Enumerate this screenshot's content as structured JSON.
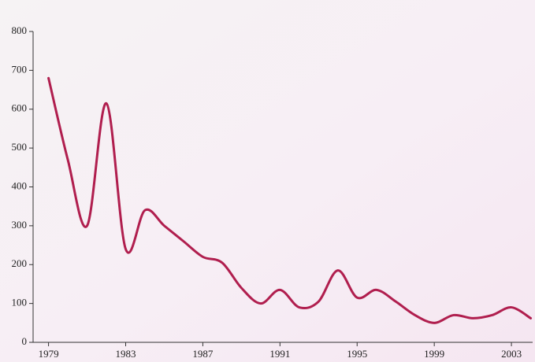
{
  "chart_data": {
    "type": "line",
    "x": [
      1979,
      1980,
      1981,
      1982,
      1983,
      1984,
      1985,
      1986,
      1987,
      1988,
      1989,
      1990,
      1991,
      1992,
      1993,
      1994,
      1995,
      1996,
      1997,
      1998,
      1999,
      2000,
      2001,
      2002,
      2003,
      2004
    ],
    "series": [
      {
        "color": "#b01e4e",
        "values": [
          680,
          470,
          300,
          615,
          240,
          340,
          300,
          260,
          220,
          205,
          140,
          100,
          135,
          90,
          105,
          185,
          115,
          135,
          105,
          70,
          50,
          70,
          62,
          70,
          90,
          62
        ]
      }
    ],
    "xlim": [
      1978.2,
      2004.1
    ],
    "xticks": [
      1979,
      1983,
      1987,
      1991,
      1995,
      1999,
      2003
    ],
    "ylim": [
      0,
      800
    ],
    "yticks": [
      0,
      100,
      200,
      300,
      400,
      500,
      600,
      700,
      800
    ]
  }
}
